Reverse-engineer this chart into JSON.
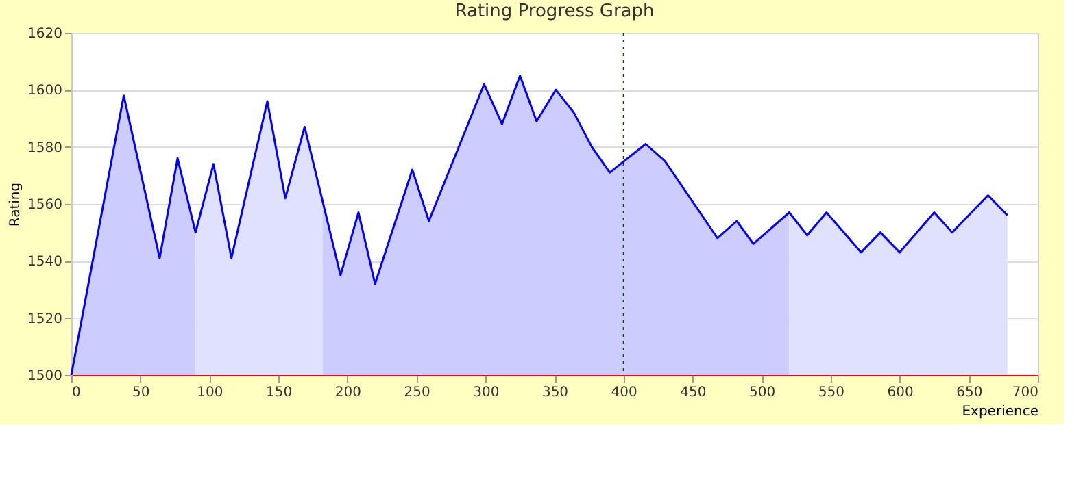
{
  "chart_data": {
    "type": "area",
    "title": "Rating Progress Graph",
    "xlabel": "Experience",
    "ylabel": "Rating",
    "xlim": [
      0,
      700
    ],
    "xticks": [
      0,
      50,
      100,
      150,
      200,
      250,
      300,
      350,
      400,
      450,
      500,
      550,
      600,
      650,
      700
    ],
    "ylim": [
      1500,
      1620
    ],
    "yticks": [
      1500,
      1520,
      1540,
      1560,
      1580,
      1600,
      1620
    ],
    "grid": "y",
    "series": [
      {
        "color": "#ccccff",
        "x": [
          0,
          38,
          64,
          77,
          90
        ],
        "values": [
          1500,
          1598,
          1541,
          1576,
          1550
        ]
      },
      {
        "color": "#e0e0ff",
        "x": [
          90,
          103,
          116,
          142,
          155,
          169,
          182
        ],
        "values": [
          1550,
          1574,
          1541,
          1596,
          1562,
          1587,
          1562
        ]
      },
      {
        "color": "#ccccff",
        "x": [
          182,
          195,
          208,
          220,
          247,
          259,
          299,
          312,
          325,
          337,
          351,
          364,
          377,
          390,
          416,
          430,
          468,
          482,
          494,
          520
        ],
        "values": [
          1562,
          1535,
          1557,
          1532,
          1572,
          1554,
          1602,
          1588,
          1605,
          1589,
          1600,
          1592,
          1580,
          1571,
          1581,
          1575,
          1548,
          1554,
          1546,
          1557
        ]
      },
      {
        "color": "#e0e0ff",
        "x": [
          520,
          533,
          547,
          572,
          586,
          600,
          625,
          638,
          664,
          678
        ],
        "values": [
          1557,
          1549,
          1557,
          1543,
          1550,
          1543,
          1557,
          1550,
          1563,
          1556
        ]
      },
      {
        "type": "line",
        "color": "#0000ff",
        "x": [
          0,
          38,
          64,
          77,
          90,
          103,
          116,
          142,
          155,
          169,
          195,
          208,
          220,
          247,
          259,
          299,
          312,
          325,
          337,
          351,
          364,
          377,
          390,
          416,
          430,
          468,
          482,
          494,
          520,
          533,
          547,
          572,
          586,
          600,
          625,
          638,
          664,
          678
        ],
        "values": [
          1500,
          1598,
          1541,
          1576,
          1550,
          1574,
          1541,
          1596,
          1562,
          1587,
          1535,
          1557,
          1532,
          1572,
          1554,
          1602,
          1588,
          1605,
          1589,
          1600,
          1592,
          1580,
          1571,
          1581,
          1575,
          1548,
          1554,
          1546,
          1557,
          1549,
          1557,
          1543,
          1550,
          1543,
          1557,
          1550,
          1563,
          1556
        ]
      }
    ],
    "ref_lines": [
      {
        "axis": "x",
        "value": 400,
        "label": null,
        "color": "#005000",
        "line_style": "dotted"
      }
    ]
  }
}
